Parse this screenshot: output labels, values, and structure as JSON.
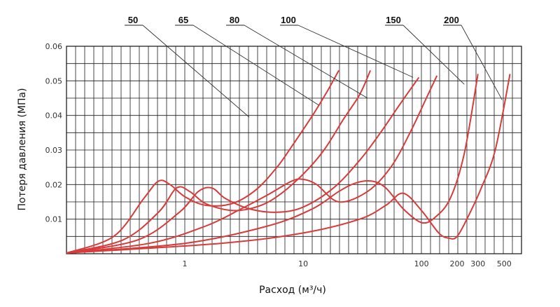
{
  "chart_data": {
    "type": "line",
    "xlabel": "Расход (м³/ч)",
    "ylabel": "Потеря давления (МПа)",
    "xscale": "log",
    "xlim": [
      0.1,
      700
    ],
    "ylim": [
      0,
      0.06
    ],
    "grid": true,
    "x_ticks": [
      {
        "value": 1,
        "label": "1"
      },
      {
        "value": 10,
        "label": "10"
      },
      {
        "value": 100,
        "label": "100"
      },
      {
        "value": 200,
        "label": "200"
      },
      {
        "value": 300,
        "label": "300"
      },
      {
        "value": 500,
        "label": "500"
      }
    ],
    "y_ticks": [
      {
        "value": 0.01,
        "label": "0.01"
      },
      {
        "value": 0.02,
        "label": "0.02"
      },
      {
        "value": 0.03,
        "label": "0.03"
      },
      {
        "value": 0.04,
        "label": "0.04"
      },
      {
        "value": 0.05,
        "label": "0.05"
      },
      {
        "value": 0.06,
        "label": "0.06"
      }
    ],
    "series": [
      {
        "name": "50",
        "color": "#d93b3b",
        "label_pos": [
          3.5,
          0.0395
        ],
        "x": [
          0.1,
          0.25,
          0.45,
          0.6,
          0.75,
          1.0,
          1.5,
          2.5,
          4,
          6,
          8,
          12,
          16,
          20
        ],
        "y": [
          0.0002,
          0.005,
          0.016,
          0.021,
          0.02,
          0.0165,
          0.014,
          0.0145,
          0.0185,
          0.025,
          0.031,
          0.04,
          0.047,
          0.053
        ]
      },
      {
        "name": "65",
        "color": "#d93b3b",
        "label_pos": [
          13.5,
          0.043
        ],
        "x": [
          0.1,
          0.3,
          0.6,
          0.85,
          1.1,
          1.5,
          2.5,
          4,
          6,
          10,
          15,
          22,
          30,
          37
        ],
        "y": [
          0.0002,
          0.004,
          0.012,
          0.019,
          0.018,
          0.0145,
          0.0125,
          0.0135,
          0.0165,
          0.023,
          0.03,
          0.039,
          0.046,
          0.053
        ]
      },
      {
        "name": "80",
        "color": "#d93b3b",
        "label_pos": [
          35,
          0.045
        ],
        "x": [
          0.1,
          0.4,
          0.9,
          1.3,
          1.7,
          2.2,
          3.5,
          6,
          10,
          18,
          30,
          45,
          65,
          95
        ],
        "y": [
          0.0002,
          0.004,
          0.012,
          0.018,
          0.019,
          0.016,
          0.013,
          0.012,
          0.0135,
          0.019,
          0.027,
          0.035,
          0.043,
          0.051
        ]
      },
      {
        "name": "100",
        "color": "#d93b3b",
        "label_pos": [
          85,
          0.051
        ],
        "x": [
          0.1,
          0.5,
          1.5,
          3,
          5,
          8,
          10,
          13,
          20,
          35,
          55,
          80,
          110,
          135
        ],
        "y": [
          0.0002,
          0.003,
          0.008,
          0.013,
          0.017,
          0.021,
          0.0215,
          0.02,
          0.015,
          0.018,
          0.025,
          0.035,
          0.045,
          0.0515
        ]
      },
      {
        "name": "150",
        "color": "#d93b3b",
        "label_pos": [
          230,
          0.049
        ],
        "x": [
          0.1,
          1,
          5,
          12,
          20,
          28,
          38,
          50,
          70,
          100,
          130,
          175,
          230,
          300
        ],
        "y": [
          0.0002,
          0.003,
          0.008,
          0.013,
          0.018,
          0.0205,
          0.021,
          0.019,
          0.013,
          0.009,
          0.0105,
          0.016,
          0.029,
          0.052
        ]
      },
      {
        "name": "200",
        "color": "#d93b3b",
        "label_pos": [
          480,
          0.0445
        ],
        "x": [
          0.1,
          2,
          10,
          30,
          50,
          70,
          100,
          140,
          170,
          200,
          250,
          320,
          420,
          560
        ],
        "y": [
          0.0002,
          0.003,
          0.006,
          0.01,
          0.014,
          0.0175,
          0.0125,
          0.006,
          0.0045,
          0.005,
          0.011,
          0.019,
          0.03,
          0.052
        ]
      }
    ]
  }
}
